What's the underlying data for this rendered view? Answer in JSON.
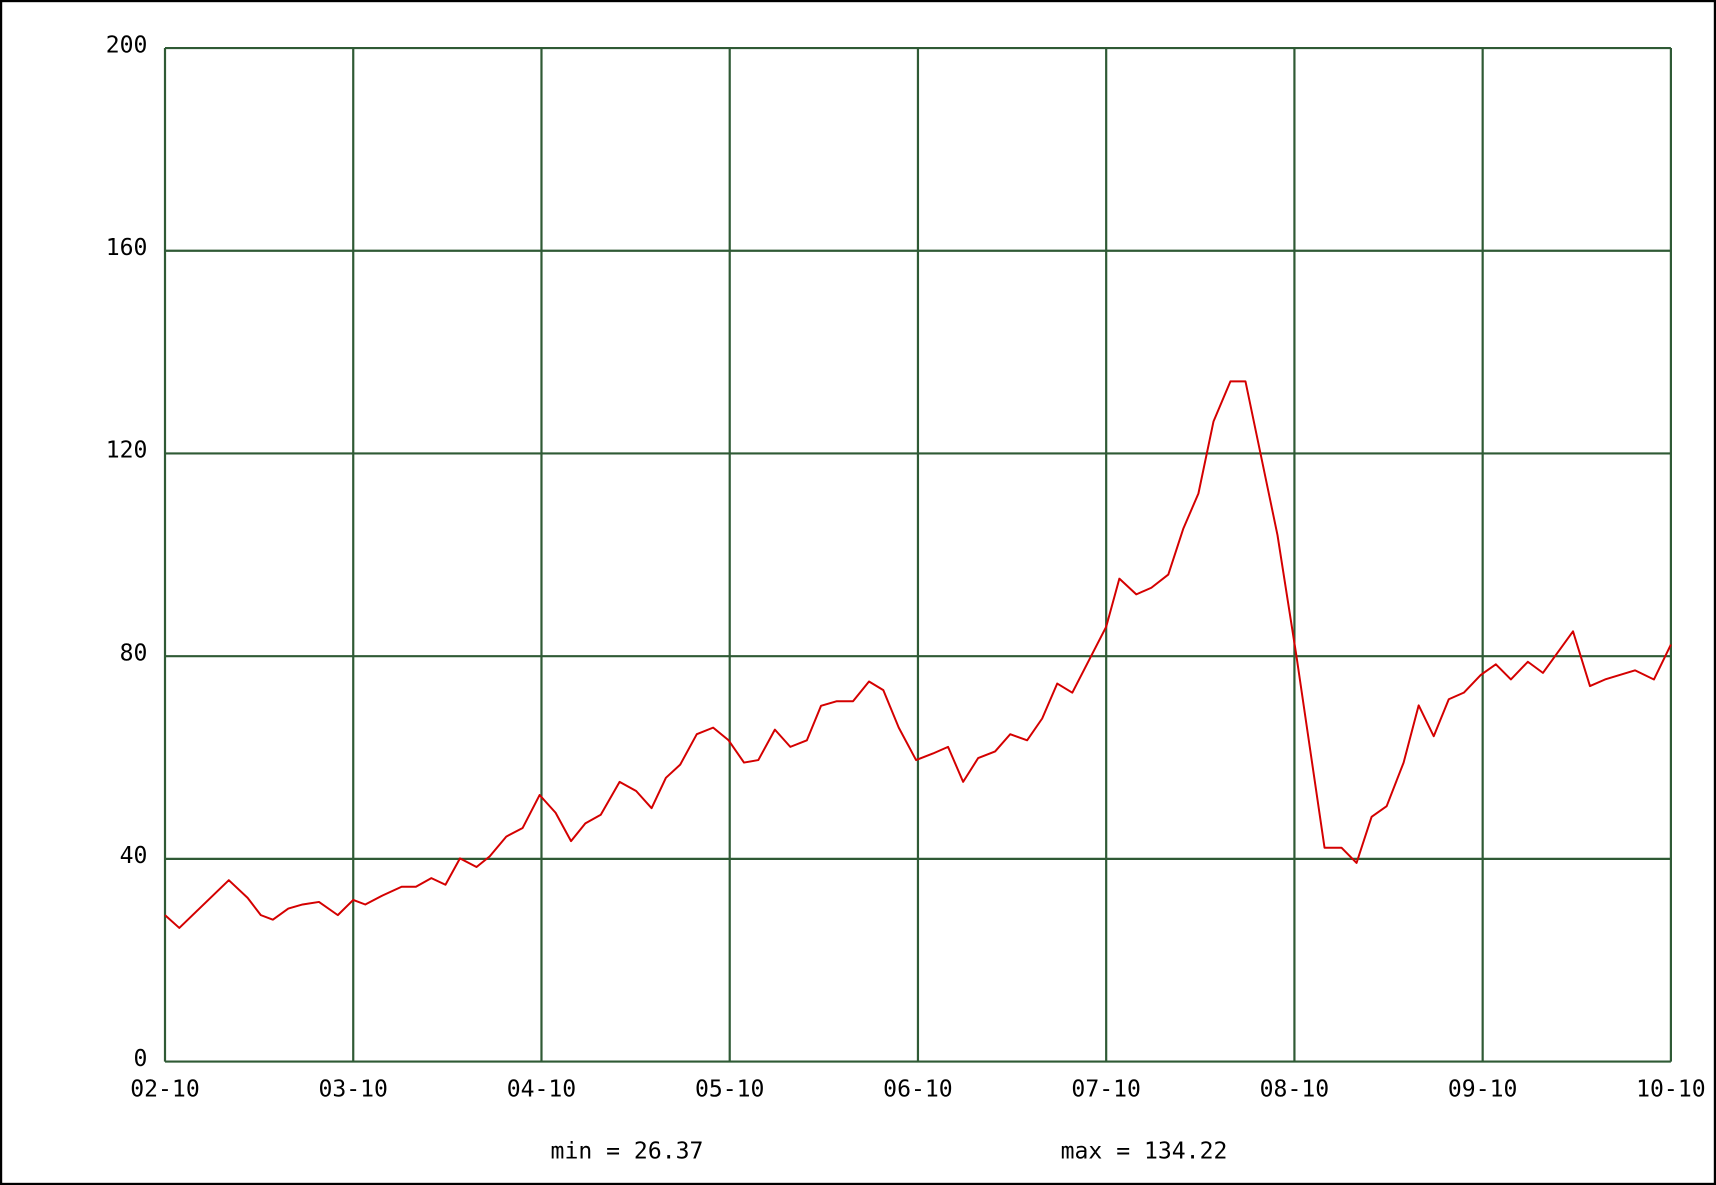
{
  "chart_data": {
    "type": "line",
    "x": [
      0,
      0.076,
      0.339,
      0.439,
      0.509,
      0.573,
      0.655,
      0.731,
      0.818,
      0.918,
      1.0,
      1.064,
      1.157,
      1.257,
      1.333,
      1.415,
      1.49,
      1.567,
      1.655,
      1.725,
      1.813,
      1.9,
      1.99,
      2.075,
      2.157,
      2.233,
      2.315,
      2.415,
      2.503,
      2.585,
      2.661,
      2.737,
      2.825,
      2.912,
      2.994,
      3.076,
      3.152,
      3.24,
      3.322,
      3.41,
      3.485,
      3.567,
      3.655,
      3.74,
      3.816,
      3.898,
      3.99,
      4.08,
      4.16,
      4.24,
      4.32,
      4.41,
      4.49,
      4.58,
      4.66,
      4.74,
      4.82,
      5.0,
      5.07,
      5.16,
      5.24,
      5.33,
      5.41,
      5.49,
      5.57,
      5.66,
      5.74,
      5.91,
      6.01,
      6.16,
      6.25,
      6.33,
      6.41,
      6.49,
      6.58,
      6.66,
      6.74,
      6.82,
      6.9,
      6.99,
      7.07,
      7.15,
      7.24,
      7.32,
      7.48,
      7.57,
      7.65,
      7.81,
      7.91,
      8.0
    ],
    "series": [
      {
        "color": "#d40000",
        "values": [
          28.9,
          26.37,
          35.8,
          32.3,
          28.9,
          28.0,
          30.2,
          31.0,
          31.5,
          28.9,
          31.9,
          31.0,
          32.8,
          34.5,
          34.5,
          36.2,
          34.9,
          40.1,
          38.4,
          40.5,
          44.4,
          46.1,
          52.6,
          49.1,
          43.5,
          47.0,
          48.7,
          55.2,
          53.4,
          50.0,
          56.0,
          58.6,
          64.6,
          65.9,
          63.4,
          59.0,
          59.5,
          65.5,
          62.1,
          63.4,
          70.2,
          71.1,
          71.1,
          75.0,
          73.3,
          65.9,
          59.5,
          60.8,
          62.1,
          55.2,
          59.9,
          61.2,
          64.6,
          63.4,
          67.7,
          74.6,
          72.8,
          85.8,
          95.3,
          92.2,
          93.5,
          96.1,
          105.2,
          112.1,
          126.3,
          134.22,
          134.22,
          103.9,
          80.2,
          42.2,
          42.2,
          39.2,
          48.3,
          50.4,
          59.0,
          70.3,
          64.2,
          71.5,
          72.8,
          76.3,
          78.4,
          75.4,
          78.9,
          76.7,
          84.9,
          74.1,
          75.4,
          77.2,
          75.4,
          82.3
        ]
      }
    ],
    "xlim": [
      0,
      8
    ],
    "xticks": [
      {
        "value": 0,
        "label": "02-10"
      },
      {
        "value": 1,
        "label": "03-10"
      },
      {
        "value": 2,
        "label": "04-10"
      },
      {
        "value": 3,
        "label": "05-10"
      },
      {
        "value": 4,
        "label": "06-10"
      },
      {
        "value": 5,
        "label": "07-10"
      },
      {
        "value": 6,
        "label": "08-10"
      },
      {
        "value": 7,
        "label": "09-10"
      },
      {
        "value": 8,
        "label": "10-10"
      }
    ],
    "ylim": [
      0,
      200
    ],
    "yticks": [
      0,
      40,
      80,
      120,
      160,
      200
    ],
    "grid": true,
    "grid_color": "#2f5a35",
    "annotations": [
      "min = 26.37",
      "max = 134.22"
    ]
  }
}
